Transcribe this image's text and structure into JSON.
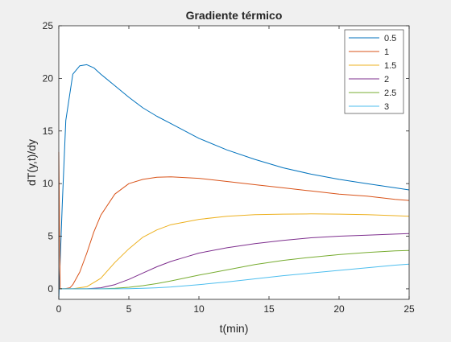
{
  "chart_data": {
    "type": "line",
    "title": "Gradiente térmico",
    "xlabel": "t(min)",
    "ylabel": "dT(y,t)/dy",
    "xlim": [
      0,
      25
    ],
    "ylim": [
      -1,
      25
    ],
    "xticks": [
      0,
      5,
      10,
      15,
      20,
      25
    ],
    "yticks": [
      0,
      5,
      10,
      15,
      20,
      25
    ],
    "grid": false,
    "legend_position": "top-right",
    "series": [
      {
        "name": "0.5",
        "color": "#0072BD",
        "x": [
          0,
          0.25,
          0.5,
          1,
          1.5,
          2,
          2.5,
          3,
          4,
          5,
          6,
          7,
          8,
          10,
          12,
          14,
          16,
          18,
          20,
          22,
          24,
          25
        ],
        "y": [
          -1,
          8,
          16,
          20.4,
          21.2,
          21.3,
          21.0,
          20.4,
          19.3,
          18.2,
          17.2,
          16.4,
          15.7,
          14.3,
          13.2,
          12.3,
          11.5,
          10.9,
          10.4,
          10.0,
          9.6,
          9.4
        ]
      },
      {
        "name": "1",
        "color": "#D95319",
        "x": [
          0,
          0.1,
          0.4,
          0.8,
          1,
          1.5,
          2,
          2.5,
          3,
          4,
          5,
          6,
          7,
          8,
          10,
          12,
          14,
          16,
          18,
          20,
          22,
          24,
          25
        ],
        "y": [
          13,
          0,
          0,
          0.1,
          0.4,
          1.6,
          3.4,
          5.4,
          7.0,
          9.0,
          10.0,
          10.4,
          10.6,
          10.65,
          10.5,
          10.2,
          9.9,
          9.6,
          9.3,
          9.0,
          8.8,
          8.5,
          8.4
        ]
      },
      {
        "name": "1.5",
        "color": "#EDB120",
        "x": [
          0,
          1,
          2,
          3,
          4,
          5,
          6,
          7,
          8,
          10,
          12,
          14,
          16,
          18,
          20,
          22,
          24,
          25
        ],
        "y": [
          0,
          0,
          0.2,
          1.0,
          2.5,
          3.8,
          4.9,
          5.6,
          6.1,
          6.6,
          6.9,
          7.05,
          7.1,
          7.12,
          7.1,
          7.05,
          6.95,
          6.9
        ]
      },
      {
        "name": "2",
        "color": "#7E2F8E",
        "x": [
          0,
          2,
          3,
          4,
          5,
          6,
          7,
          8,
          9,
          10,
          12,
          14,
          16,
          18,
          20,
          22,
          24,
          25
        ],
        "y": [
          0,
          0,
          0.1,
          0.4,
          0.9,
          1.5,
          2.1,
          2.6,
          3.0,
          3.4,
          3.9,
          4.3,
          4.6,
          4.85,
          5.0,
          5.1,
          5.2,
          5.25
        ]
      },
      {
        "name": "2.5",
        "color": "#77AC30",
        "x": [
          0,
          3,
          4,
          5,
          6,
          7,
          8,
          10,
          12,
          14,
          16,
          18,
          20,
          22,
          24,
          25
        ],
        "y": [
          0,
          0,
          0.05,
          0.15,
          0.3,
          0.5,
          0.75,
          1.3,
          1.8,
          2.3,
          2.7,
          3.0,
          3.25,
          3.45,
          3.6,
          3.65
        ]
      },
      {
        "name": "3",
        "color": "#4DBEEE",
        "x": [
          0,
          4,
          5,
          6,
          7,
          8,
          10,
          12,
          14,
          16,
          18,
          20,
          22,
          24,
          25
        ],
        "y": [
          0,
          0,
          0.02,
          0.05,
          0.1,
          0.18,
          0.4,
          0.65,
          0.95,
          1.25,
          1.5,
          1.75,
          2.0,
          2.25,
          2.35
        ]
      }
    ]
  }
}
